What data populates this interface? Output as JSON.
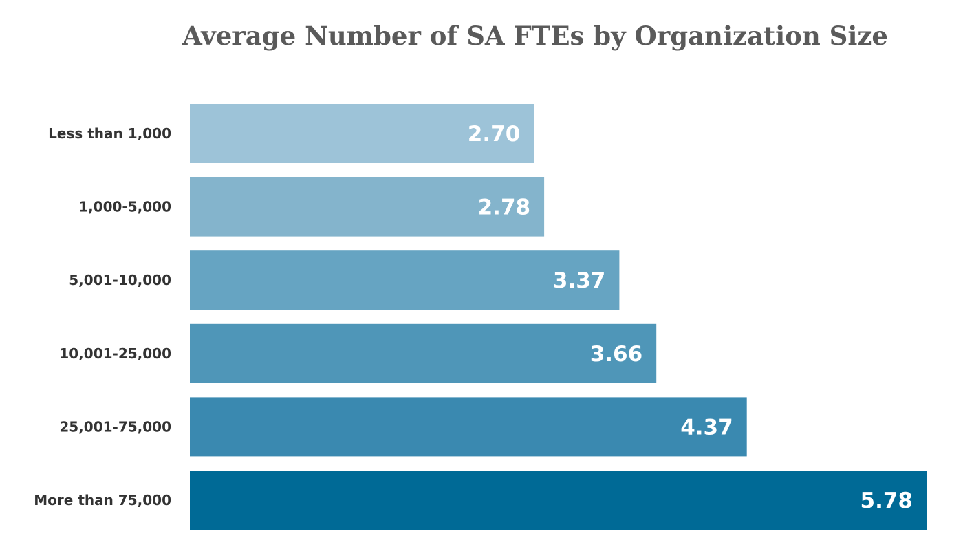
{
  "chart_data": {
    "type": "bar",
    "orientation": "horizontal",
    "title": "Average Number of SA FTEs by Organization Size",
    "xlabel": "",
    "ylabel": "",
    "categories": [
      "Less than 1,000",
      "1,000-5,000",
      "5,001-10,000",
      "10,001-25,000",
      "25,001-75,000",
      "More than 75,000"
    ],
    "values": [
      2.7,
      2.78,
      3.37,
      3.66,
      4.37,
      5.78
    ],
    "value_labels": [
      "2.70",
      "2.78",
      "3.37",
      "3.66",
      "4.37",
      "5.78"
    ],
    "colors": [
      "#9dc3d8",
      "#84b4cc",
      "#66a4c2",
      "#4f96b8",
      "#3a89b0",
      "#006a96"
    ],
    "xlim": [
      0,
      5.78
    ],
    "grid": false,
    "legend": "none"
  }
}
